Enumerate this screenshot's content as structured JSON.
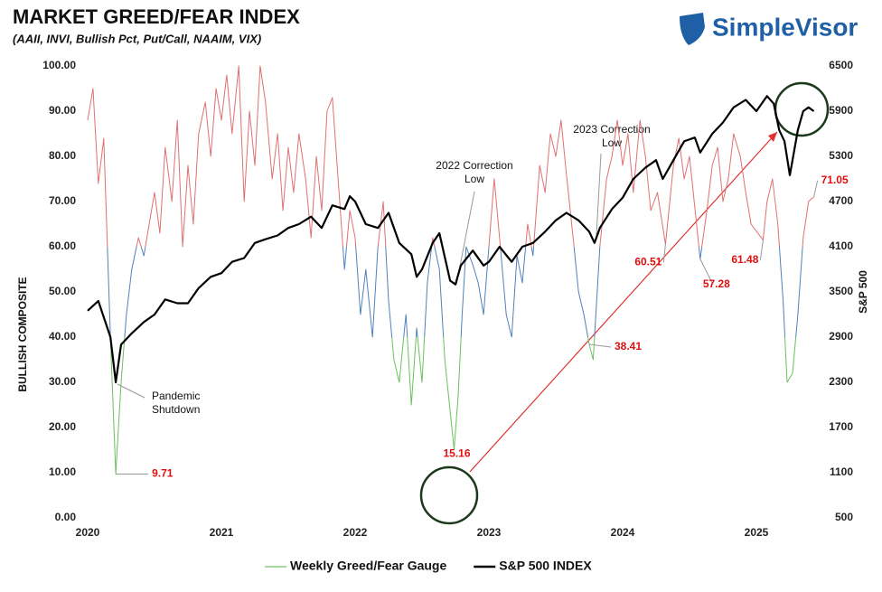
{
  "chart_data": {
    "type": "line",
    "title": "MARKET GREED/FEAR INDEX",
    "subtitle": "(AAII, INVI, Bullish Pct, Put/Call, NAAIM, VIX)",
    "logo": "SimpleVisor",
    "y_label": "BULLISH COMPOSITE",
    "y2_label": "S&P 500",
    "xlim": [
      2020,
      2025.45
    ],
    "xticks": [
      2020,
      2021,
      2022,
      2023,
      2024,
      2025
    ],
    "ylim": [
      0,
      100
    ],
    "yticks": [
      {
        "value": 0,
        "label": "0.00"
      },
      {
        "value": 10,
        "label": "10.00"
      },
      {
        "value": 20,
        "label": "20.00"
      },
      {
        "value": 30,
        "label": "30.00"
      },
      {
        "value": 40,
        "label": "40.00"
      },
      {
        "value": 50,
        "label": "50.00"
      },
      {
        "value": 60,
        "label": "60.00"
      },
      {
        "value": 70,
        "label": "70.00"
      },
      {
        "value": 80,
        "label": "80.00"
      },
      {
        "value": 90,
        "label": "90.00"
      },
      {
        "value": 100,
        "label": "100.00"
      }
    ],
    "y2lim": [
      500,
      6500
    ],
    "y2ticks": [
      500,
      1100,
      1700,
      2300,
      2900,
      3500,
      4100,
      4700,
      5300,
      5900,
      6500
    ],
    "grid": false,
    "series": [
      {
        "name": "Weekly Greed/Fear Gauge",
        "color": "#6cbf5f",
        "color_scale": [
          {
            "from": 0,
            "color": "#6cbf5f"
          },
          {
            "from": 40,
            "color": "#4f81bd"
          },
          {
            "from": 60,
            "color": "#e07070"
          }
        ],
        "x": [
          2020.0,
          2020.04,
          2020.08,
          2020.12,
          2020.17,
          2020.21,
          2020.25,
          2020.29,
          2020.33,
          2020.38,
          2020.42,
          2020.46,
          2020.5,
          2020.54,
          2020.58,
          2020.63,
          2020.67,
          2020.71,
          2020.75,
          2020.79,
          2020.83,
          2020.88,
          2020.92,
          2020.96,
          2021.0,
          2021.04,
          2021.08,
          2021.13,
          2021.17,
          2021.21,
          2021.25,
          2021.29,
          2021.33,
          2021.38,
          2021.42,
          2021.46,
          2021.5,
          2021.54,
          2021.58,
          2021.63,
          2021.67,
          2021.71,
          2021.75,
          2021.79,
          2021.83,
          2021.88,
          2021.92,
          2021.96,
          2022.0,
          2022.04,
          2022.08,
          2022.13,
          2022.17,
          2022.21,
          2022.25,
          2022.29,
          2022.33,
          2022.38,
          2022.42,
          2022.46,
          2022.5,
          2022.54,
          2022.58,
          2022.63,
          2022.67,
          2022.74,
          2022.77,
          2022.8,
          2022.83,
          2022.88,
          2022.92,
          2022.96,
          2023.0,
          2023.04,
          2023.08,
          2023.13,
          2023.17,
          2023.21,
          2023.25,
          2023.29,
          2023.33,
          2023.38,
          2023.42,
          2023.46,
          2023.5,
          2023.54,
          2023.58,
          2023.63,
          2023.67,
          2023.71,
          2023.75,
          2023.78,
          2023.83,
          2023.88,
          2023.92,
          2023.96,
          2024.0,
          2024.04,
          2024.08,
          2024.13,
          2024.17,
          2024.21,
          2024.26,
          2024.32,
          2024.38,
          2024.42,
          2024.46,
          2024.5,
          2024.58,
          2024.63,
          2024.67,
          2024.71,
          2024.75,
          2024.79,
          2024.83,
          2024.88,
          2024.92,
          2024.96,
          2025.05,
          2025.08,
          2025.12,
          2025.16,
          2025.2,
          2025.23,
          2025.27,
          2025.31,
          2025.35,
          2025.39,
          2025.43
        ],
        "values": [
          88,
          95,
          74,
          84,
          40,
          9.71,
          30,
          45,
          55,
          62,
          58,
          65,
          72,
          63,
          82,
          70,
          88,
          60,
          78,
          65,
          85,
          92,
          80,
          95,
          88,
          98,
          85,
          100,
          70,
          90,
          78,
          100,
          92,
          75,
          85,
          68,
          82,
          72,
          85,
          75,
          62,
          80,
          68,
          90,
          93,
          72,
          55,
          68,
          62,
          45,
          55,
          40,
          60,
          70,
          48,
          35,
          30,
          45,
          25,
          42,
          30,
          52,
          62,
          55,
          35,
          15.16,
          27,
          45,
          60,
          56,
          52,
          45,
          60,
          75,
          62,
          45,
          40,
          58,
          52,
          65,
          58,
          78,
          72,
          85,
          80,
          88,
          76,
          62,
          50,
          45,
          38.41,
          35,
          60,
          75,
          80,
          88,
          78,
          85,
          72,
          88,
          80,
          68,
          72,
          60.51,
          78,
          84,
          75,
          80,
          57.28,
          68,
          78,
          82,
          70,
          75,
          85,
          80,
          72,
          65,
          61.48,
          70,
          75,
          65,
          48,
          30,
          32,
          45,
          62,
          70,
          71.05
        ]
      },
      {
        "name": "S&P 500 INDEX",
        "color": "#000000",
        "axis": "y2",
        "x": [
          2020.0,
          2020.08,
          2020.17,
          2020.21,
          2020.25,
          2020.33,
          2020.42,
          2020.5,
          2020.58,
          2020.67,
          2020.75,
          2020.83,
          2020.92,
          2021.0,
          2021.08,
          2021.17,
          2021.25,
          2021.33,
          2021.42,
          2021.5,
          2021.58,
          2021.67,
          2021.75,
          2021.83,
          2021.92,
          2021.96,
          2022.0,
          2022.08,
          2022.17,
          2022.25,
          2022.33,
          2022.42,
          2022.46,
          2022.5,
          2022.58,
          2022.63,
          2022.71,
          2022.75,
          2022.79,
          2022.88,
          2022.96,
          2023.0,
          2023.08,
          2023.17,
          2023.25,
          2023.33,
          2023.42,
          2023.5,
          2023.58,
          2023.67,
          2023.75,
          2023.79,
          2023.83,
          2023.92,
          2024.0,
          2024.08,
          2024.17,
          2024.25,
          2024.3,
          2024.38,
          2024.46,
          2024.54,
          2024.58,
          2024.67,
          2024.75,
          2024.83,
          2024.92,
          2025.0,
          2025.08,
          2025.13,
          2025.17,
          2025.21,
          2025.25,
          2025.27,
          2025.31,
          2025.35,
          2025.39,
          2025.43
        ],
        "values": [
          3250,
          3380,
          2900,
          2300,
          2800,
          2950,
          3100,
          3200,
          3400,
          3350,
          3350,
          3550,
          3700,
          3750,
          3900,
          3950,
          4150,
          4200,
          4250,
          4350,
          4400,
          4500,
          4350,
          4650,
          4600,
          4770,
          4700,
          4400,
          4350,
          4550,
          4150,
          4000,
          3700,
          3800,
          4150,
          4280,
          3650,
          3600,
          3850,
          4050,
          3850,
          3900,
          4100,
          3900,
          4100,
          4150,
          4300,
          4450,
          4550,
          4450,
          4300,
          4150,
          4350,
          4600,
          4750,
          5000,
          5150,
          5250,
          5000,
          5250,
          5500,
          5550,
          5350,
          5600,
          5750,
          5950,
          6050,
          5900,
          6100,
          6000,
          5650,
          5500,
          5050,
          5250,
          5650,
          5900,
          5950,
          5900
        ]
      }
    ],
    "annotations": [
      {
        "x": 2020.21,
        "value": 9.71
      },
      {
        "x": 2022.74,
        "value": 15.16
      },
      {
        "x": 2023.75,
        "value": 38.41
      },
      {
        "x": 2024.32,
        "value": 60.51
      },
      {
        "x": 2024.58,
        "value": 57.28
      },
      {
        "x": 2025.05,
        "value": 61.48
      },
      {
        "x": 2025.43,
        "value": 71.05
      }
    ],
    "notes": [
      {
        "lines": [
          "Pandemic",
          "Shutdown"
        ]
      },
      {
        "lines": [
          "2022 Correction",
          "Low"
        ]
      },
      {
        "lines": [
          "2023 Correction",
          "Low"
        ]
      }
    ],
    "legend": "bottom"
  }
}
